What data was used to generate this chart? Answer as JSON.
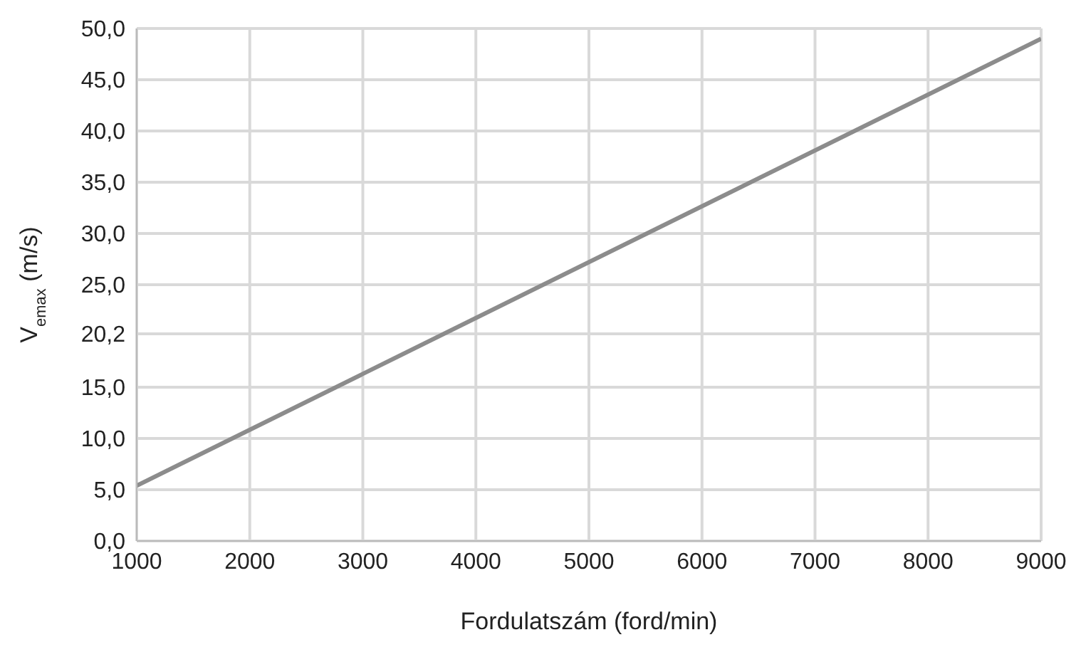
{
  "chart_data": {
    "type": "line",
    "xlabel": "Fordulatszám (ford/min)",
    "ylabel": "V$_{emax}$ (m/s)",
    "x": [
      1000,
      9000
    ],
    "series": [
      {
        "color": "#8c8c8c",
        "values": [
          5.4,
          49.0
        ]
      }
    ],
    "xlim": [
      1000,
      9000
    ],
    "xticks": [
      1000,
      2000,
      3000,
      4000,
      5000,
      6000,
      7000,
      8000,
      9000
    ],
    "ylim": [
      0,
      50
    ],
    "yticks": [
      {
        "value": 0,
        "label": "0,0"
      },
      {
        "value": 5,
        "label": "5,0"
      },
      {
        "value": 10,
        "label": "10,0"
      },
      {
        "value": 15,
        "label": "15,0"
      },
      {
        "value": 20.2,
        "label": "20,2"
      },
      {
        "value": 25,
        "label": "25,0"
      },
      {
        "value": 30,
        "label": "30,0"
      },
      {
        "value": 35,
        "label": "35,0"
      },
      {
        "value": 40,
        "label": "40,0"
      },
      {
        "value": 45,
        "label": "45,0"
      },
      {
        "value": 50,
        "label": "50,0"
      }
    ],
    "grid": true,
    "legend": false,
    "marker": "none",
    "line_style": "solid"
  }
}
